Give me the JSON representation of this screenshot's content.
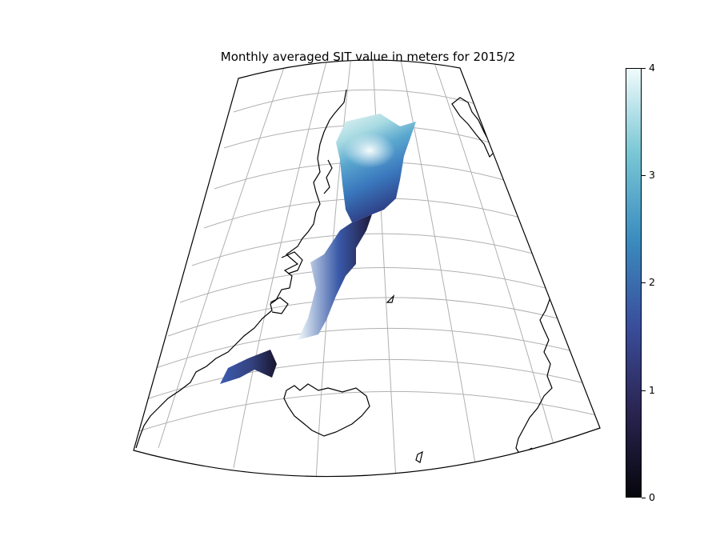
{
  "title": "Monthly averaged SIT value in meters for 2015/2",
  "colorbar": {
    "ticks": [
      "0",
      "1",
      "2",
      "3",
      "4"
    ],
    "colors": [
      "#06060c",
      "#2a2451",
      "#3a4e9c",
      "#3a8cbf",
      "#78c6d5",
      "#f0fbfb"
    ]
  },
  "map": {
    "background": "#ffffff",
    "grid_color": "#b0b0b0",
    "coast_color": "#000000"
  }
}
